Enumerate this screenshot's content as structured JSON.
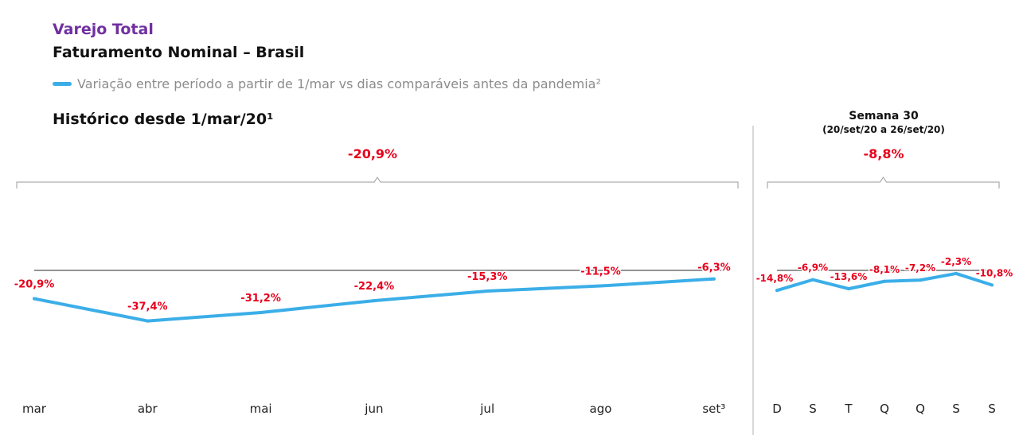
{
  "header": {
    "eyebrow": "Varejo Total",
    "title": "Faturamento Nominal – Brasil",
    "legend_label": "Variação entre período a partir de 1/mar vs dias comparáveis antes da pandemia²",
    "legend_color": "#3baee8"
  },
  "colors": {
    "accent_purple": "#7030a0",
    "line": "#3baee8",
    "label_red": "#e8001c",
    "baseline": "#555555",
    "bracket": "#9a9a9a",
    "divider": "#b0b0b0"
  },
  "chart_data": [
    {
      "type": "line",
      "title": "Histórico desde 1/mar/20¹",
      "summary_value": "-20,9%",
      "categories": [
        "mar",
        "abr",
        "mai",
        "jun",
        "jul",
        "ago",
        "set³"
      ],
      "series": [
        {
          "values": [
            -20.9,
            -37.4,
            -31.2,
            -22.4,
            -15.3,
            -11.5,
            -6.3
          ],
          "labels": [
            "-20,9%",
            "-37,4%",
            "-31,2%",
            "-22,4%",
            "-15,3%",
            "-11,5%",
            "-6,3%"
          ]
        }
      ],
      "baseline": 0,
      "grid": false
    },
    {
      "type": "line",
      "title": "Semana 30",
      "subtitle": "(20/set/20 a 26/set/20)",
      "summary_value": "-8,8%",
      "categories": [
        "D",
        "S",
        "T",
        "Q",
        "Q",
        "S",
        "S"
      ],
      "series": [
        {
          "values": [
            -14.8,
            -6.9,
            -13.6,
            -8.1,
            -7.2,
            -2.3,
            -10.8
          ],
          "labels": [
            "-14,8%",
            "-6,9%",
            "-13,6%",
            "-8,1%",
            "-7,2%",
            "-2,3%",
            "-10,8%"
          ]
        }
      ],
      "baseline": 0,
      "grid": false
    }
  ]
}
